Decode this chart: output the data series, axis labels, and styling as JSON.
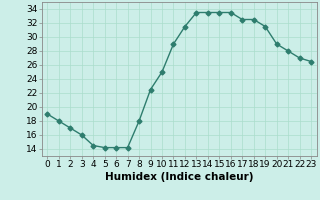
{
  "x": [
    0,
    1,
    2,
    3,
    4,
    5,
    6,
    7,
    8,
    9,
    10,
    11,
    12,
    13,
    14,
    15,
    16,
    17,
    18,
    19,
    20,
    21,
    22,
    23
  ],
  "y": [
    19,
    18,
    17,
    16,
    14.5,
    14.2,
    14.2,
    14.2,
    18,
    22.5,
    25,
    29,
    31.5,
    33.5,
    33.5,
    33.5,
    33.5,
    32.5,
    32.5,
    31.5,
    29,
    28,
    27,
    26.5
  ],
  "line_color": "#2e7d6e",
  "marker": "D",
  "marker_size": 2.5,
  "xlabel": "Humidex (Indice chaleur)",
  "xlim": [
    -0.5,
    23.5
  ],
  "ylim": [
    13,
    35
  ],
  "yticks": [
    14,
    16,
    18,
    20,
    22,
    24,
    26,
    28,
    30,
    32,
    34
  ],
  "xticks": [
    0,
    1,
    2,
    3,
    4,
    5,
    6,
    7,
    8,
    9,
    10,
    11,
    12,
    13,
    14,
    15,
    16,
    17,
    18,
    19,
    20,
    21,
    22,
    23
  ],
  "xtick_labels": [
    "0",
    "1",
    "2",
    "3",
    "4",
    "5",
    "6",
    "7",
    "8",
    "9",
    "10",
    "11",
    "12",
    "13",
    "14",
    "15",
    "16",
    "17",
    "18",
    "19",
    "20",
    "21",
    "22",
    "23"
  ],
  "bg_color": "#cceee8",
  "grid_color": "#aaddcc",
  "tick_fontsize": 6.5,
  "xlabel_fontsize": 7.5,
  "line_width": 1.0
}
